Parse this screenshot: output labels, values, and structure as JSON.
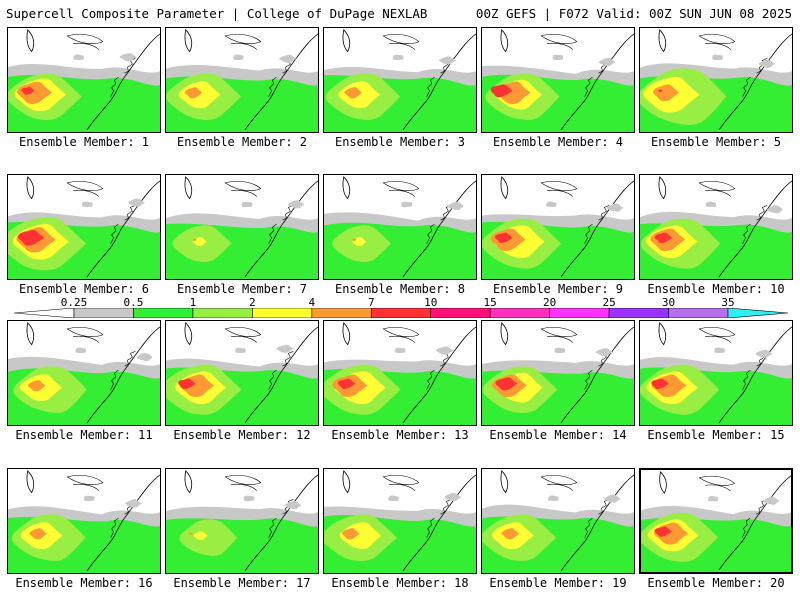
{
  "header": {
    "title": "Supercell Composite Parameter | College of DuPage NEXLAB",
    "run": "00Z GEFS | F072 Valid: 00Z SUN JUN 08 2025"
  },
  "label_prefix": "Ensemble Member: ",
  "selected_member": 20,
  "colorbar": {
    "ticks": [
      "0.25",
      "0.5",
      "1",
      "2",
      "4",
      "7",
      "10",
      "15",
      "20",
      "25",
      "30",
      "35"
    ],
    "colors": [
      "#c8c8c8",
      "#33ee33",
      "#99ee44",
      "#ffff33",
      "#ff9933",
      "#ff3333",
      "#ff1177",
      "#ff33bb",
      "#ff33ff",
      "#9933ff",
      "#b56ef0",
      "#33eeee"
    ]
  },
  "members": [
    {
      "id": 1,
      "label": "Ensemble Member: 1",
      "pattern": "hot-west"
    },
    {
      "id": 2,
      "label": "Ensemble Member: 2",
      "pattern": "warm"
    },
    {
      "id": 3,
      "label": "Ensemble Member: 3",
      "pattern": "warm"
    },
    {
      "id": 4,
      "label": "Ensemble Member: 4",
      "pattern": "hot-nw"
    },
    {
      "id": 5,
      "label": "Ensemble Member: 5",
      "pattern": "warm-wide"
    },
    {
      "id": 6,
      "label": "Ensemble Member: 6",
      "pattern": "hot-sw"
    },
    {
      "id": 7,
      "label": "Ensemble Member: 7",
      "pattern": "weak"
    },
    {
      "id": 8,
      "label": "Ensemble Member: 8",
      "pattern": "weak"
    },
    {
      "id": 9,
      "label": "Ensemble Member: 9",
      "pattern": "hot-w"
    },
    {
      "id": 10,
      "label": "Ensemble Member: 10",
      "pattern": "hot-w"
    },
    {
      "id": 11,
      "label": "Ensemble Member: 11",
      "pattern": "warm"
    },
    {
      "id": 12,
      "label": "Ensemble Member: 12",
      "pattern": "hot-w"
    },
    {
      "id": 13,
      "label": "Ensemble Member: 13",
      "pattern": "hot-w"
    },
    {
      "id": 14,
      "label": "Ensemble Member: 14",
      "pattern": "hot-nw"
    },
    {
      "id": 15,
      "label": "Ensemble Member: 15",
      "pattern": "hot-w"
    },
    {
      "id": 16,
      "label": "Ensemble Member: 16",
      "pattern": "warm"
    },
    {
      "id": 17,
      "label": "Ensemble Member: 17",
      "pattern": "weak"
    },
    {
      "id": 18,
      "label": "Ensemble Member: 18",
      "pattern": "warm"
    },
    {
      "id": 19,
      "label": "Ensemble Member: 19",
      "pattern": "warm"
    },
    {
      "id": 20,
      "label": "Ensemble Member: 20",
      "pattern": "hot-w"
    }
  ]
}
